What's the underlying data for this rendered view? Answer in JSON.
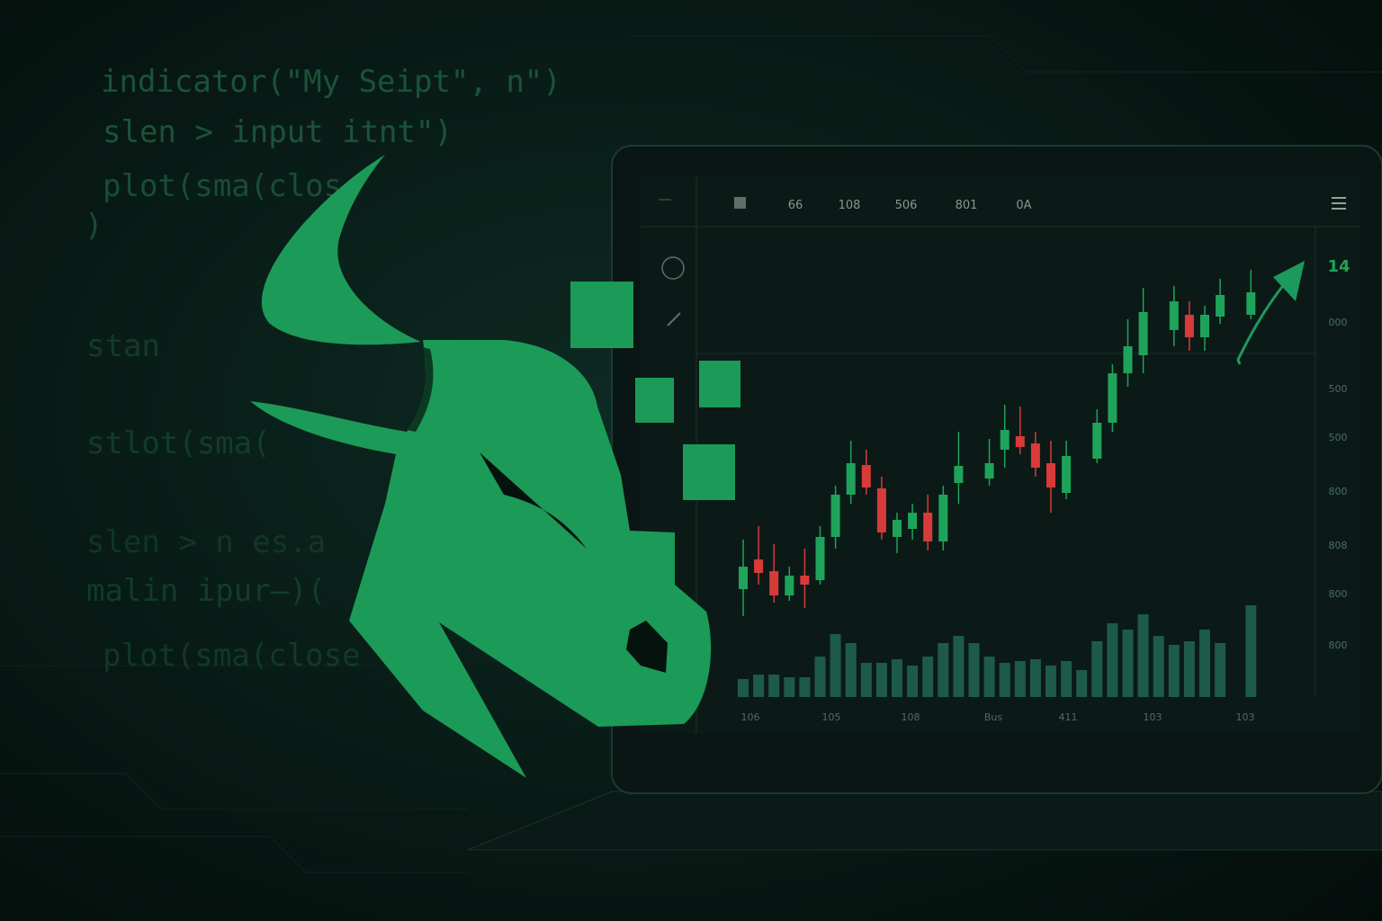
{
  "code_lines": [
    "indicator(\"My Seipt\", n\")",
    "slen > input itnt\")",
    "plot(sma(clos",
    ")",
    "stan",
    "stlot(sma(",
    "slen > n es.a",
    "malin ipur—)(",
    "plot(sma(close"
  ],
  "toolbar": {
    "items": [
      "66",
      "108",
      "506",
      "801",
      "0A"
    ]
  },
  "chart_data": {
    "type": "candlestick",
    "open": [
      45,
      78,
      65,
      38,
      60,
      55,
      103,
      150,
      183,
      157,
      103,
      112,
      130,
      98,
      163,
      null,
      168,
      200,
      215,
      207,
      185,
      152,
      null,
      190,
      230,
      285,
      305,
      null,
      333,
      350,
      325,
      348,
      null,
      350
    ],
    "high": [
      100,
      115,
      95,
      70,
      90,
      115,
      160,
      210,
      200,
      170,
      130,
      140,
      150,
      160,
      220,
      null,
      212,
      250,
      248,
      220,
      210,
      210,
      null,
      245,
      295,
      345,
      380,
      null,
      382,
      365,
      360,
      390,
      null,
      400
    ],
    "low": [
      15,
      50,
      30,
      32,
      24,
      50,
      90,
      140,
      150,
      100,
      85,
      100,
      88,
      88,
      140,
      null,
      160,
      180,
      195,
      170,
      130,
      145,
      null,
      185,
      220,
      270,
      285,
      null,
      315,
      310,
      310,
      340,
      null,
      345
    ],
    "close": [
      70,
      63,
      38,
      60,
      50,
      103,
      150,
      185,
      158,
      108,
      122,
      130,
      98,
      150,
      182,
      null,
      185,
      222,
      203,
      180,
      158,
      193,
      null,
      230,
      285,
      315,
      353,
      null,
      365,
      325,
      350,
      372,
      null,
      375
    ],
    "volume": [
      20,
      25,
      25,
      22,
      22,
      45,
      70,
      60,
      38,
      38,
      42,
      35,
      45,
      60,
      68,
      60,
      45,
      38,
      40,
      42,
      35,
      40,
      30,
      62,
      82,
      75,
      92,
      68,
      58,
      62,
      75,
      60,
      null,
      102
    ],
    "ylim": [
      0,
      420
    ],
    "up_color": "#1fa35a",
    "down_color": "#d83a3a",
    "volume_color": "#1d5a4a",
    "price_label": "14",
    "axis_labels": [
      "000",
      "500",
      "500",
      "800",
      "808",
      "800",
      "800"
    ],
    "x_labels": [
      "106",
      "105",
      "108",
      "Bus",
      "411",
      "103",
      "103"
    ]
  }
}
